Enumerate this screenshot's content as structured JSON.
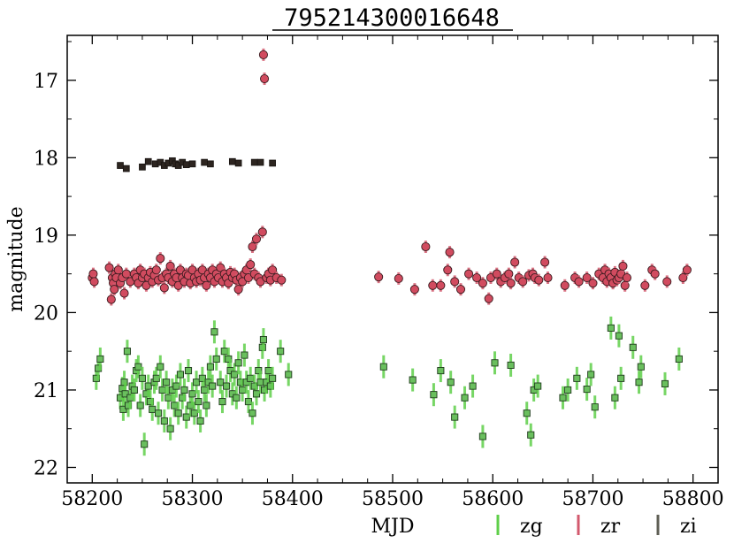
{
  "chart_data": {
    "type": "scatter",
    "title": "795214300016648",
    "xlabel": "MJD",
    "ylabel": "magnitude",
    "xlim": [
      58175,
      58825
    ],
    "ylim": [
      22.2,
      16.42
    ],
    "y_inverted": true,
    "x_ticks": [
      58200,
      58300,
      58400,
      58500,
      58600,
      58700,
      58800
    ],
    "y_ticks": [
      17,
      18,
      19,
      20,
      21,
      22
    ],
    "grid": false,
    "legend_position": "bottom-right, outside plot",
    "series": [
      {
        "name": "zg",
        "marker": "square",
        "color": "#5fcf4a",
        "marker_fill": "#6abf5e",
        "points": [
          [
            58204,
            20.85
          ],
          [
            58206,
            20.72
          ],
          [
            58208,
            20.6
          ],
          [
            58228,
            21.1
          ],
          [
            58230,
            20.98
          ],
          [
            58231,
            21.25
          ],
          [
            58232,
            20.9
          ],
          [
            58233,
            21.05
          ],
          [
            58235,
            20.5
          ],
          [
            58236,
            21.2
          ],
          [
            58238,
            21.1
          ],
          [
            58240,
            20.95
          ],
          [
            58242,
            21.0
          ],
          [
            58244,
            20.75
          ],
          [
            58246,
            20.7
          ],
          [
            58248,
            21.2
          ],
          [
            58250,
            20.85
          ],
          [
            58252,
            21.7
          ],
          [
            58254,
            21.05
          ],
          [
            58256,
            20.95
          ],
          [
            58258,
            21.15
          ],
          [
            58260,
            21.25
          ],
          [
            58262,
            20.9
          ],
          [
            58264,
            20.85
          ],
          [
            58266,
            21.3
          ],
          [
            58268,
            20.7
          ],
          [
            58270,
            21.0
          ],
          [
            58272,
            21.4
          ],
          [
            58274,
            20.9
          ],
          [
            58276,
            21.1
          ],
          [
            58278,
            21.5
          ],
          [
            58280,
            21.0
          ],
          [
            58282,
            21.2
          ],
          [
            58284,
            20.95
          ],
          [
            58286,
            21.3
          ],
          [
            58288,
            20.8
          ],
          [
            58290,
            21.1
          ],
          [
            58292,
            21.0
          ],
          [
            58294,
            21.35
          ],
          [
            58296,
            20.75
          ],
          [
            58298,
            21.2
          ],
          [
            58300,
            21.05
          ],
          [
            58302,
            21.3
          ],
          [
            58304,
            20.9
          ],
          [
            58306,
            21.15
          ],
          [
            58308,
            21.4
          ],
          [
            58310,
            20.85
          ],
          [
            58312,
            21.0
          ],
          [
            58314,
            21.2
          ],
          [
            58316,
            20.9
          ],
          [
            58318,
            20.7
          ],
          [
            58320,
            20.95
          ],
          [
            58322,
            20.25
          ],
          [
            58324,
            20.6
          ],
          [
            58328,
            20.9
          ],
          [
            58330,
            21.15
          ],
          [
            58332,
            20.5
          ],
          [
            58334,
            20.95
          ],
          [
            58336,
            20.6
          ],
          [
            58338,
            20.75
          ],
          [
            58340,
            21.05
          ],
          [
            58342,
            20.8
          ],
          [
            58344,
            21.1
          ],
          [
            58346,
            20.65
          ],
          [
            58348,
            20.9
          ],
          [
            58350,
            21.0
          ],
          [
            58352,
            20.55
          ],
          [
            58354,
            20.9
          ],
          [
            58356,
            21.15
          ],
          [
            58358,
            20.85
          ],
          [
            58360,
            21.3
          ],
          [
            58362,
            20.95
          ],
          [
            58364,
            21.05
          ],
          [
            58366,
            20.75
          ],
          [
            58368,
            20.9
          ],
          [
            58370,
            20.45
          ],
          [
            58371,
            20.35
          ],
          [
            58372,
            21.0
          ],
          [
            58374,
            20.9
          ],
          [
            58376,
            20.75
          ],
          [
            58378,
            20.95
          ],
          [
            58380,
            20.85
          ],
          [
            58388,
            20.5
          ],
          [
            58396,
            20.8
          ],
          [
            58491,
            20.7
          ],
          [
            58520,
            20.87
          ],
          [
            58541,
            21.06
          ],
          [
            58548,
            20.75
          ],
          [
            58558,
            20.9
          ],
          [
            58562,
            21.35
          ],
          [
            58572,
            21.1
          ],
          [
            58580,
            20.95
          ],
          [
            58590,
            21.6
          ],
          [
            58602,
            20.65
          ],
          [
            58618,
            20.68
          ],
          [
            58634,
            21.3
          ],
          [
            58638,
            21.58
          ],
          [
            58641,
            21.0
          ],
          [
            58645,
            20.95
          ],
          [
            58670,
            21.1
          ],
          [
            58675,
            21.0
          ],
          [
            58684,
            20.85
          ],
          [
            58694,
            20.99
          ],
          [
            58698,
            20.8
          ],
          [
            58702,
            21.22
          ],
          [
            58718,
            20.2
          ],
          [
            58722,
            21.1
          ],
          [
            58726,
            20.3
          ],
          [
            58728,
            20.85
          ],
          [
            58740,
            20.45
          ],
          [
            58746,
            20.9
          ],
          [
            58748,
            20.7
          ],
          [
            58772,
            20.92
          ],
          [
            58786,
            20.6
          ]
        ]
      },
      {
        "name": "zr",
        "marker": "circle",
        "color": "#d35a6e",
        "marker_fill": "#d14b5f",
        "points": [
          [
            58200,
            19.55
          ],
          [
            58201,
            19.5
          ],
          [
            58202,
            19.6
          ],
          [
            58217,
            19.42
          ],
          [
            58219,
            19.83
          ],
          [
            58220,
            19.55
          ],
          [
            58221,
            19.62
          ],
          [
            58222,
            19.7
          ],
          [
            58223,
            19.5
          ],
          [
            58224,
            19.55
          ],
          [
            58226,
            19.45
          ],
          [
            58228,
            19.62
          ],
          [
            58230,
            19.55
          ],
          [
            58232,
            19.75
          ],
          [
            58234,
            19.5
          ],
          [
            58238,
            19.6
          ],
          [
            58242,
            19.5
          ],
          [
            58244,
            19.55
          ],
          [
            58246,
            19.62
          ],
          [
            58248,
            19.45
          ],
          [
            58250,
            19.55
          ],
          [
            58252,
            19.5
          ],
          [
            58254,
            19.65
          ],
          [
            58256,
            19.55
          ],
          [
            58258,
            19.48
          ],
          [
            58260,
            19.6
          ],
          [
            58262,
            19.52
          ],
          [
            58264,
            19.45
          ],
          [
            58266,
            19.58
          ],
          [
            58268,
            19.3
          ],
          [
            58270,
            19.55
          ],
          [
            58272,
            19.68
          ],
          [
            58274,
            19.5
          ],
          [
            58276,
            19.55
          ],
          [
            58278,
            19.4
          ],
          [
            58280,
            19.6
          ],
          [
            58282,
            19.5
          ],
          [
            58284,
            19.55
          ],
          [
            58286,
            19.65
          ],
          [
            58288,
            19.45
          ],
          [
            58290,
            19.55
          ],
          [
            58292,
            19.6
          ],
          [
            58294,
            19.5
          ],
          [
            58296,
            19.52
          ],
          [
            58298,
            19.62
          ],
          [
            58300,
            19.45
          ],
          [
            58302,
            19.55
          ],
          [
            58304,
            19.6
          ],
          [
            58306,
            19.5
          ],
          [
            58308,
            19.58
          ],
          [
            58310,
            19.45
          ],
          [
            58312,
            19.55
          ],
          [
            58314,
            19.65
          ],
          [
            58316,
            19.5
          ],
          [
            58318,
            19.55
          ],
          [
            58320,
            19.45
          ],
          [
            58322,
            19.6
          ],
          [
            58324,
            19.5
          ],
          [
            58326,
            19.55
          ],
          [
            58328,
            19.42
          ],
          [
            58330,
            19.6
          ],
          [
            58332,
            19.5
          ],
          [
            58334,
            19.55
          ],
          [
            58336,
            19.62
          ],
          [
            58338,
            19.48
          ],
          [
            58340,
            19.55
          ],
          [
            58342,
            19.5
          ],
          [
            58344,
            19.58
          ],
          [
            58346,
            19.7
          ],
          [
            58348,
            19.55
          ],
          [
            58350,
            19.6
          ],
          [
            58352,
            19.5
          ],
          [
            58354,
            19.45
          ],
          [
            58356,
            19.55
          ],
          [
            58358,
            19.38
          ],
          [
            58360,
            19.15
          ],
          [
            58362,
            19.5
          ],
          [
            58364,
            19.05
          ],
          [
            58366,
            19.55
          ],
          [
            58368,
            19.6
          ],
          [
            58370,
            18.96
          ],
          [
            58371,
            16.67
          ],
          [
            58372,
            16.98
          ],
          [
            58374,
            19.55
          ],
          [
            58376,
            19.5
          ],
          [
            58378,
            19.58
          ],
          [
            58380,
            19.45
          ],
          [
            58384,
            19.55
          ],
          [
            58389,
            19.58
          ],
          [
            58486,
            19.54
          ],
          [
            58506,
            19.56
          ],
          [
            58522,
            19.7
          ],
          [
            58533,
            19.15
          ],
          [
            58540,
            19.65
          ],
          [
            58548,
            19.65
          ],
          [
            58555,
            19.45
          ],
          [
            58557,
            19.22
          ],
          [
            58562,
            19.6
          ],
          [
            58568,
            19.7
          ],
          [
            58576,
            19.5
          ],
          [
            58584,
            19.55
          ],
          [
            58590,
            19.62
          ],
          [
            58596,
            19.82
          ],
          [
            58598,
            19.55
          ],
          [
            58604,
            19.5
          ],
          [
            58608,
            19.6
          ],
          [
            58612,
            19.55
          ],
          [
            58616,
            19.5
          ],
          [
            58618,
            19.62
          ],
          [
            58622,
            19.35
          ],
          [
            58626,
            19.55
          ],
          [
            58630,
            19.6
          ],
          [
            58636,
            19.52
          ],
          [
            58640,
            19.5
          ],
          [
            58642,
            19.55
          ],
          [
            58646,
            19.58
          ],
          [
            58652,
            19.35
          ],
          [
            58655,
            19.55
          ],
          [
            58672,
            19.65
          ],
          [
            58682,
            19.55
          ],
          [
            58686,
            19.6
          ],
          [
            58694,
            19.55
          ],
          [
            58700,
            19.62
          ],
          [
            58706,
            19.5
          ],
          [
            58710,
            19.55
          ],
          [
            58712,
            19.45
          ],
          [
            58714,
            19.6
          ],
          [
            58716,
            19.5
          ],
          [
            58718,
            19.55
          ],
          [
            58720,
            19.62
          ],
          [
            58722,
            19.48
          ],
          [
            58724,
            19.58
          ],
          [
            58726,
            19.55
          ],
          [
            58728,
            19.5
          ],
          [
            58730,
            19.4
          ],
          [
            58732,
            19.65
          ],
          [
            58734,
            19.55
          ],
          [
            58752,
            19.65
          ],
          [
            58759,
            19.45
          ],
          [
            58762,
            19.5
          ],
          [
            58774,
            19.6
          ],
          [
            58790,
            19.55
          ],
          [
            58794,
            19.45
          ]
        ]
      },
      {
        "name": "zi",
        "marker": "square",
        "color": "#5f5f55",
        "marker_fill": "#2d2520",
        "points": [
          [
            58228,
            18.1
          ],
          [
            58234,
            18.14
          ],
          [
            58250,
            18.12
          ],
          [
            58256,
            18.05
          ],
          [
            58263,
            18.08
          ],
          [
            58268,
            18.06
          ],
          [
            58272,
            18.1
          ],
          [
            58276,
            18.07
          ],
          [
            58280,
            18.04
          ],
          [
            58283,
            18.08
          ],
          [
            58286,
            18.1
          ],
          [
            58290,
            18.06
          ],
          [
            58294,
            18.09
          ],
          [
            58300,
            18.08
          ],
          [
            58312,
            18.06
          ],
          [
            58318,
            18.08
          ],
          [
            58340,
            18.05
          ],
          [
            58346,
            18.07
          ],
          [
            58362,
            18.06
          ],
          [
            58368,
            18.06
          ],
          [
            58380,
            18.07
          ]
        ]
      }
    ]
  }
}
